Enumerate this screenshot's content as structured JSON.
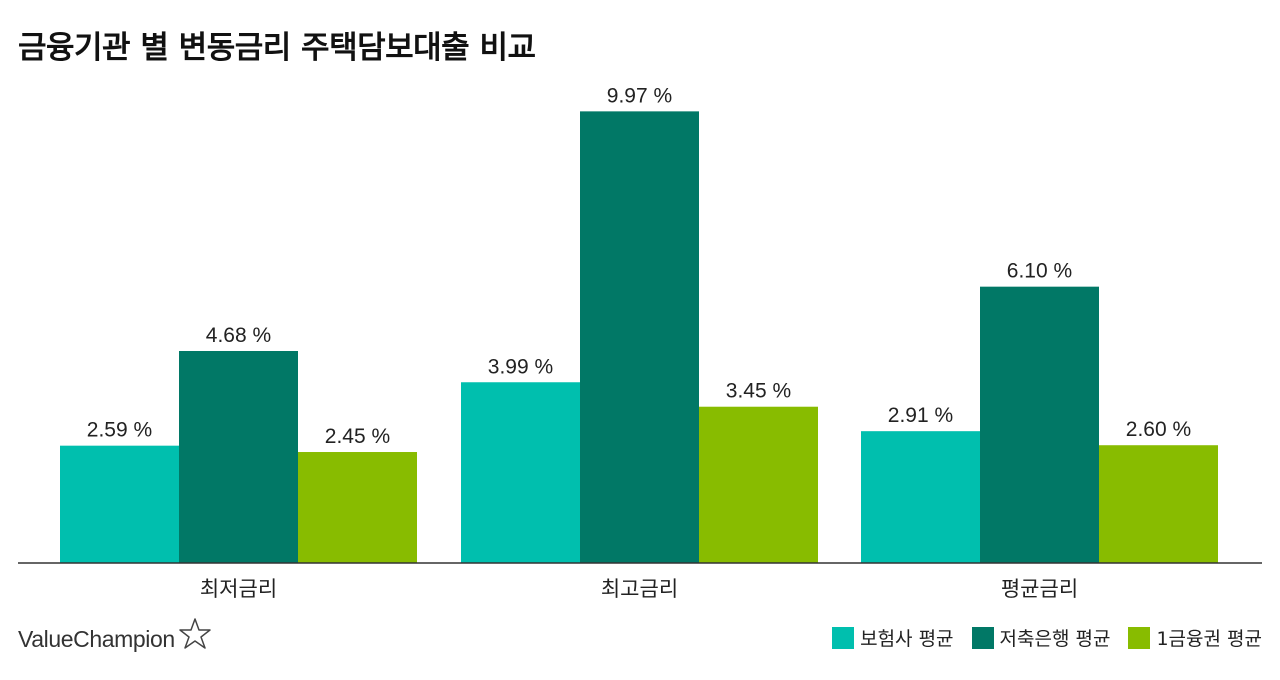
{
  "chart_data": {
    "type": "bar",
    "title": "금융기관 별 변동금리 주택담보대출 비교",
    "categories": [
      "최저금리",
      "최고금리",
      "평균금리"
    ],
    "series": [
      {
        "name": "보험사 평균",
        "color": "#00BFAE",
        "values": [
          2.59,
          3.99,
          2.91
        ],
        "labels": [
          "2.59 %",
          "3.99 %",
          "2.91 %"
        ]
      },
      {
        "name": "저축은행 평균",
        "color": "#017866",
        "values": [
          4.68,
          9.97,
          6.1
        ],
        "labels": [
          "4.68 %",
          "9.97 %",
          "6.10 %"
        ]
      },
      {
        "name": "1금융권 평균",
        "color": "#88BC00",
        "values": [
          2.45,
          3.45,
          2.6
        ],
        "labels": [
          "2.45 %",
          "3.45 %",
          "2.60 %"
        ]
      }
    ],
    "ylim": [
      0,
      10
    ],
    "xlabel": "",
    "ylabel": "",
    "grid": false,
    "legend_position": "bottom-right"
  },
  "brand": {
    "name": "ValueChampion",
    "icon": "star-outline-icon"
  }
}
